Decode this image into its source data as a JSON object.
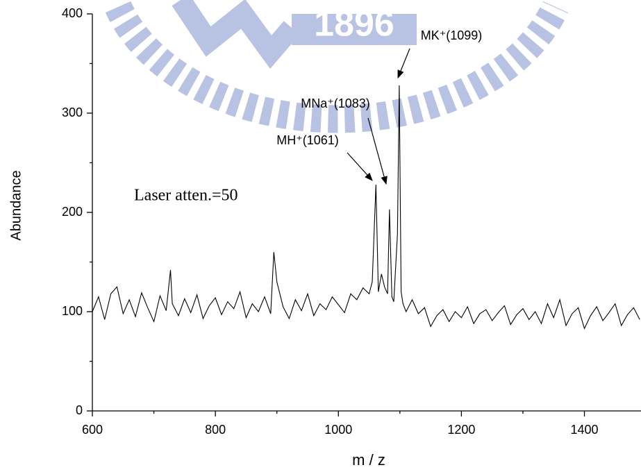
{
  "watermark": "1896",
  "chart_data": {
    "type": "line",
    "x_label": "m / z",
    "y_label": "Abundance",
    "note": "Laser atten.=50",
    "annotations": [
      "MK⁺(1099)",
      "MNa⁺(1083)",
      "MH⁺(1061)"
    ],
    "xlim": [
      600,
      1492
    ],
    "ylim": [
      0,
      400
    ],
    "xticks": [
      600,
      800,
      1000,
      1200,
      1400
    ],
    "yticks": [
      0,
      100,
      200,
      300,
      400
    ],
    "xminor": [
      700,
      900,
      1100,
      1300
    ],
    "yminor": [
      50,
      150,
      250,
      350
    ],
    "grid": false,
    "series": [
      {
        "color": "#000000",
        "x": [
          600,
          610,
          620,
          630,
          640,
          650,
          660,
          670,
          680,
          690,
          700,
          710,
          720,
          727,
          730,
          740,
          750,
          760,
          770,
          780,
          790,
          800,
          810,
          820,
          830,
          840,
          850,
          860,
          870,
          880,
          890,
          895,
          900,
          910,
          920,
          930,
          940,
          950,
          960,
          970,
          980,
          990,
          1000,
          1010,
          1020,
          1030,
          1040,
          1050,
          1055,
          1061,
          1065,
          1070,
          1075,
          1080,
          1083,
          1087,
          1090,
          1096,
          1099,
          1102,
          1105,
          1110,
          1120,
          1130,
          1140,
          1150,
          1160,
          1170,
          1180,
          1190,
          1200,
          1210,
          1220,
          1230,
          1240,
          1250,
          1260,
          1270,
          1280,
          1290,
          1300,
          1310,
          1320,
          1330,
          1340,
          1350,
          1360,
          1370,
          1380,
          1390,
          1400,
          1410,
          1420,
          1430,
          1440,
          1450,
          1460,
          1470,
          1480,
          1490
        ],
        "values": [
          100,
          115,
          92,
          118,
          125,
          98,
          112,
          95,
          119,
          104,
          90,
          116,
          101,
          142,
          108,
          96,
          113,
          99,
          117,
          93,
          106,
          114,
          97,
          110,
          103,
          120,
          94,
          108,
          100,
          115,
          98,
          160,
          130,
          105,
          93,
          112,
          101,
          118,
          96,
          108,
          102,
          115,
          107,
          99,
          118,
          112,
          124,
          118,
          130,
          228,
          120,
          138,
          125,
          118,
          203,
          115,
          110,
          178,
          328,
          120,
          108,
          100,
          112,
          98,
          104,
          85,
          96,
          102,
          90,
          100,
          94,
          105,
          88,
          98,
          102,
          91,
          99,
          106,
          87,
          97,
          103,
          92,
          100,
          88,
          108,
          94,
          112,
          86,
          98,
          104,
          83,
          96,
          105,
          91,
          99,
          108,
          86,
          97,
          104,
          92
        ]
      }
    ]
  }
}
